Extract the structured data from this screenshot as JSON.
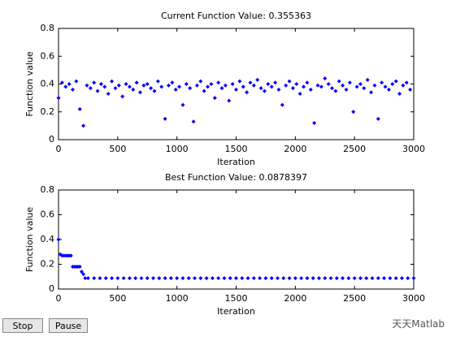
{
  "chart_data": [
    {
      "type": "scatter",
      "title": "Current Function Value: 0.355363",
      "x_label": "Iteration",
      "y_label": "Function value",
      "color": "#0000ff",
      "x": [
        0,
        30,
        60,
        90,
        120,
        150,
        180,
        210,
        240,
        270,
        300,
        330,
        360,
        390,
        420,
        450,
        480,
        510,
        540,
        570,
        600,
        630,
        660,
        690,
        720,
        750,
        780,
        810,
        840,
        870,
        900,
        930,
        960,
        990,
        1020,
        1050,
        1080,
        1110,
        1140,
        1170,
        1200,
        1230,
        1260,
        1290,
        1320,
        1350,
        1380,
        1410,
        1440,
        1470,
        1500,
        1530,
        1560,
        1590,
        1620,
        1650,
        1680,
        1710,
        1740,
        1770,
        1800,
        1830,
        1860,
        1890,
        1920,
        1950,
        1980,
        2010,
        2040,
        2070,
        2100,
        2130,
        2160,
        2190,
        2220,
        2250,
        2280,
        2310,
        2340,
        2370,
        2400,
        2430,
        2460,
        2490,
        2520,
        2550,
        2580,
        2610,
        2640,
        2670,
        2700,
        2730,
        2760,
        2790,
        2820,
        2850,
        2880,
        2910,
        2940,
        2970
      ],
      "values": [
        0.3,
        0.41,
        0.38,
        0.4,
        0.36,
        0.42,
        0.22,
        0.1,
        0.39,
        0.37,
        0.41,
        0.35,
        0.4,
        0.38,
        0.33,
        0.42,
        0.37,
        0.39,
        0.31,
        0.4,
        0.38,
        0.36,
        0.41,
        0.34,
        0.39,
        0.4,
        0.37,
        0.35,
        0.42,
        0.38,
        0.15,
        0.39,
        0.41,
        0.36,
        0.38,
        0.25,
        0.4,
        0.37,
        0.13,
        0.39,
        0.42,
        0.35,
        0.38,
        0.4,
        0.3,
        0.41,
        0.37,
        0.39,
        0.28,
        0.4,
        0.36,
        0.42,
        0.38,
        0.34,
        0.41,
        0.39,
        0.43,
        0.37,
        0.35,
        0.4,
        0.38,
        0.41,
        0.36,
        0.25,
        0.39,
        0.42,
        0.37,
        0.4,
        0.33,
        0.38,
        0.41,
        0.36,
        0.12,
        0.39,
        0.38,
        0.44,
        0.4,
        0.37,
        0.35,
        0.42,
        0.39,
        0.36,
        0.41,
        0.2,
        0.38,
        0.4,
        0.37,
        0.43,
        0.34,
        0.39,
        0.15,
        0.41,
        0.38,
        0.36,
        0.4,
        0.42,
        0.33,
        0.39,
        0.41,
        0.36
      ],
      "xlim": [
        0,
        3000
      ],
      "xticks": [
        0,
        500,
        1000,
        1500,
        2000,
        2500,
        3000
      ],
      "ylim": [
        0,
        0.8
      ],
      "yticks": [
        0,
        0.2,
        0.4,
        0.6,
        0.8
      ]
    },
    {
      "type": "scatter",
      "title": "Best Function Value: 0.0878397",
      "x_label": "Iteration",
      "y_label": "Function value",
      "color": "#0000ff",
      "x": [
        0,
        15,
        30,
        45,
        60,
        75,
        90,
        105,
        120,
        135,
        150,
        165,
        180,
        195,
        210,
        225,
        250,
        300,
        350,
        400,
        450,
        500,
        550,
        600,
        650,
        700,
        750,
        800,
        850,
        900,
        950,
        1000,
        1050,
        1100,
        1150,
        1200,
        1250,
        1300,
        1350,
        1400,
        1450,
        1500,
        1550,
        1600,
        1650,
        1700,
        1750,
        1800,
        1850,
        1900,
        1950,
        2000,
        2050,
        2100,
        2150,
        2200,
        2250,
        2300,
        2350,
        2400,
        2450,
        2500,
        2550,
        2600,
        2650,
        2700,
        2750,
        2800,
        2850,
        2900,
        2950,
        3000
      ],
      "values": [
        0.4,
        0.28,
        0.27,
        0.27,
        0.27,
        0.27,
        0.27,
        0.27,
        0.18,
        0.18,
        0.18,
        0.18,
        0.18,
        0.14,
        0.12,
        0.088,
        0.088,
        0.088,
        0.088,
        0.088,
        0.088,
        0.088,
        0.088,
        0.088,
        0.088,
        0.088,
        0.088,
        0.088,
        0.088,
        0.088,
        0.088,
        0.088,
        0.088,
        0.088,
        0.088,
        0.088,
        0.088,
        0.088,
        0.088,
        0.088,
        0.088,
        0.088,
        0.088,
        0.088,
        0.088,
        0.088,
        0.088,
        0.088,
        0.088,
        0.088,
        0.088,
        0.088,
        0.088,
        0.088,
        0.088,
        0.088,
        0.088,
        0.088,
        0.088,
        0.088,
        0.088,
        0.088,
        0.088,
        0.088,
        0.088,
        0.088,
        0.088,
        0.088,
        0.088,
        0.088,
        0.088,
        0.088
      ],
      "xlim": [
        0,
        3000
      ],
      "xticks": [
        0,
        500,
        1000,
        1500,
        2000,
        2500,
        3000
      ],
      "ylim": [
        0,
        0.8
      ],
      "yticks": [
        0,
        0.2,
        0.4,
        0.6,
        0.8
      ]
    }
  ],
  "buttons": [
    "Stop",
    "Pause"
  ],
  "watermark": "天天Matlab"
}
